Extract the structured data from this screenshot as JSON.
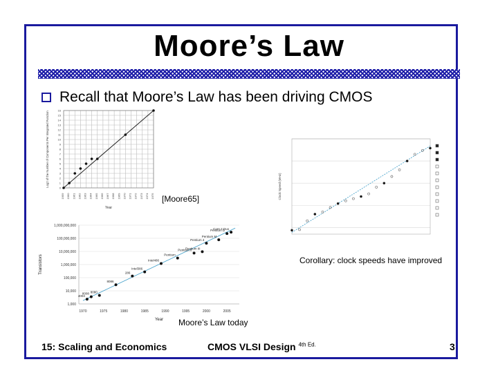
{
  "slide": {
    "title": "Moore’s Law",
    "bullet": "Recall that Moore’s Law has been driving CMOS",
    "captions": {
      "moore65": "[Moore65]",
      "clock": "Corollary: clock speeds have improved",
      "today": "Moore’s Law today"
    },
    "footer": {
      "left": "15: Scaling and Economics",
      "center": "CMOS VLSI Design",
      "center_sup": "4th Ed.",
      "page": "3"
    },
    "colors": {
      "border": "#1a1a9e",
      "hatch": "#1d1da8",
      "fit_line": "#3a9cc8"
    }
  },
  "chart_data": [
    {
      "type": "scatter",
      "title": "",
      "xlabel": "Year",
      "ylabel": "Log2 of the Number of Components Per Integrated Function",
      "x": [
        1959,
        1960,
        1961,
        1962,
        1963,
        1964,
        1965,
        1970,
        1975
      ],
      "y": [
        0,
        1,
        3,
        4,
        5,
        6,
        6,
        11,
        16
      ],
      "xlim": [
        1959,
        1975
      ],
      "ylim": [
        0,
        16
      ],
      "grid": true
    },
    {
      "type": "scatter",
      "title": "",
      "xlabel": "",
      "ylabel": "Clock Speed (MHz)",
      "x": [
        1970,
        1972,
        1974,
        1976,
        1978,
        1980,
        1982,
        1984,
        1986,
        1988,
        1990,
        1992,
        1994,
        1996,
        1998,
        2000,
        2002,
        2004,
        2006
      ],
      "y": [
        0.75,
        0.8,
        2,
        4,
        5,
        8,
        12,
        16,
        20,
        25,
        33,
        66,
        100,
        200,
        400,
        1000,
        2000,
        3000,
        3800
      ],
      "grid": true
    },
    {
      "type": "scatter",
      "title": "",
      "xlabel": "Year",
      "ylabel": "Transistors",
      "ytick_labels": [
        "1,000,000,000",
        "100,000,000",
        "10,000,000",
        "1,000,000",
        "100,000",
        "10,000",
        "1,000"
      ],
      "xtick_labels": [
        "1970",
        "1975",
        "1980",
        "1985",
        "1990",
        "1995",
        "2000",
        "2005"
      ],
      "points": [
        {
          "label": "4004",
          "x": 1971,
          "y": 2300
        },
        {
          "label": "8008",
          "x": 1972,
          "y": 3500
        },
        {
          "label": "8080",
          "x": 1974,
          "y": 4500
        },
        {
          "label": "8086",
          "x": 1978,
          "y": 29000
        },
        {
          "label": "286",
          "x": 1982,
          "y": 134000
        },
        {
          "label": "Intel386",
          "x": 1985,
          "y": 275000
        },
        {
          "label": "Intel486",
          "x": 1989,
          "y": 1200000
        },
        {
          "label": "Pentium",
          "x": 1993,
          "y": 3100000
        },
        {
          "label": "Pentium II",
          "x": 1997,
          "y": 7500000
        },
        {
          "label": "Pentium III",
          "x": 1999,
          "y": 9500000
        },
        {
          "label": "Pentium 4",
          "x": 2000,
          "y": 42000000
        },
        {
          "label": "Pentium M",
          "x": 2003,
          "y": 77000000
        },
        {
          "label": "Pentium D",
          "x": 2005,
          "y": 230000000
        },
        {
          "label": "Core 2 Duo",
          "x": 2006,
          "y": 291000000
        }
      ],
      "grid": true
    }
  ]
}
